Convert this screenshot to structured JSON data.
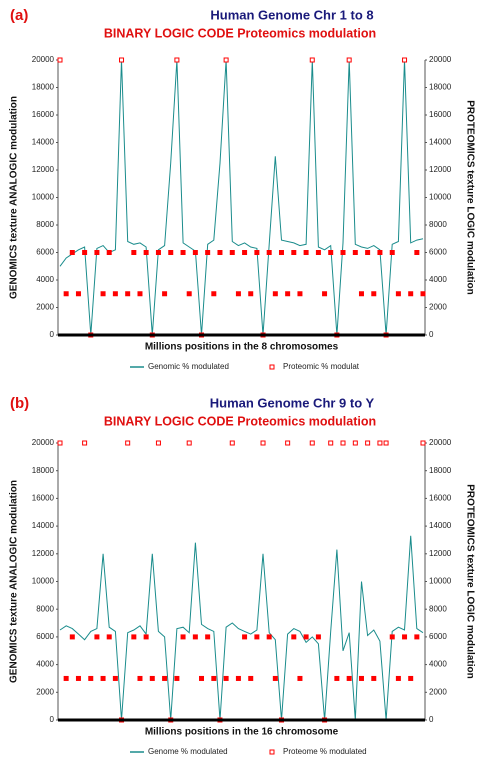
{
  "chart_data": [
    {
      "type": "line",
      "panel_label": "(a)",
      "title": "Human Genome Chr 1 to 8",
      "subtitle": "BINARY LOGIC CODE Proteomics modulation",
      "xlabel": "Millions positions in the 8 chromosomes",
      "ylabel": "GENOMICS texture ANALOGIC modulation",
      "y2label": "PROTEOMICS texture LOGIC modulation",
      "ylim": [
        0,
        20000
      ],
      "yticks": [
        0,
        2000,
        4000,
        6000,
        8000,
        10000,
        12000,
        14000,
        16000,
        18000,
        20000
      ],
      "y2lim": [
        0,
        20000
      ],
      "y2ticks": [
        0,
        2000,
        4000,
        6000,
        8000,
        10000,
        12000,
        14000,
        16000,
        18000,
        20000
      ],
      "grid": false,
      "series": [
        {
          "name": "Genomic % modulated",
          "color": "#1a8c8c",
          "mode": "line",
          "values": [
            5000,
            5600,
            5900,
            6200,
            6400,
            0,
            6300,
            6500,
            6000,
            6200,
            20000,
            6800,
            6600,
            6700,
            6400,
            0,
            6200,
            6500,
            12500,
            20000,
            6700,
            6400,
            6100,
            0,
            6600,
            6900,
            12500,
            20000,
            6800,
            6500,
            6700,
            6400,
            6300,
            0,
            6600,
            13000,
            6900,
            6800,
            6700,
            6500,
            6600,
            20000,
            6400,
            6200,
            6500,
            0,
            6700,
            20000,
            6600,
            6400,
            6300,
            6500,
            6200,
            0,
            6600,
            6800,
            20000,
            6700,
            6900,
            7000
          ]
        },
        {
          "name": "Proteomic % modulat",
          "color": "#ff0000",
          "mode": "markers",
          "axis": "y2",
          "values": [
            20000,
            3000,
            6000,
            3000,
            6000,
            0,
            6000,
            3000,
            6000,
            3000,
            20000,
            3000,
            6000,
            3000,
            6000,
            0,
            6000,
            3000,
            6000,
            20000,
            6000,
            3000,
            6000,
            0,
            6000,
            3000,
            6000,
            20000,
            6000,
            3000,
            6000,
            3000,
            6000,
            0,
            6000,
            3000,
            6000,
            3000,
            6000,
            3000,
            6000,
            20000,
            6000,
            3000,
            6000,
            0,
            6000,
            20000,
            6000,
            3000,
            6000,
            3000,
            6000,
            0,
            6000,
            3000,
            20000,
            3000,
            6000,
            3000
          ]
        }
      ]
    },
    {
      "type": "line",
      "panel_label": "(b)",
      "title": "Human Genome Chr 9 to Y",
      "subtitle": "BINARY LOGIC CODE Proteomics modulation",
      "xlabel": "Millions positions in the 16 chromosome",
      "ylabel": "GENOMICS texture ANALOGIC modulation",
      "y2label": "PROTEOMICS texture LOGIC modulation",
      "ylim": [
        0,
        20000
      ],
      "yticks": [
        0,
        2000,
        4000,
        6000,
        8000,
        10000,
        12000,
        14000,
        16000,
        18000,
        20000
      ],
      "y2lim": [
        0,
        20000
      ],
      "y2ticks": [
        0,
        2000,
        4000,
        6000,
        8000,
        10000,
        12000,
        14000,
        16000,
        18000,
        20000
      ],
      "grid": false,
      "series": [
        {
          "name": "Genome % modulated",
          "color": "#1a8c8c",
          "mode": "line",
          "values": [
            6500,
            6800,
            6600,
            6200,
            5800,
            6400,
            6600,
            12000,
            6700,
            6400,
            0,
            6300,
            6500,
            6800,
            6200,
            12000,
            6400,
            6000,
            0,
            6600,
            6700,
            6300,
            12800,
            6900,
            6600,
            6400,
            0,
            6700,
            7000,
            6600,
            6400,
            6200,
            6500,
            12000,
            6300,
            5800,
            0,
            6200,
            6600,
            6400,
            5600,
            6000,
            5500,
            0,
            6400,
            12300,
            5000,
            6300,
            0,
            10000,
            6100,
            6500,
            5700,
            0,
            6400,
            6700,
            6500,
            13300,
            6600,
            6300
          ]
        },
        {
          "name": "Proteome % modulated",
          "color": "#ff0000",
          "mode": "markers",
          "axis": "y2",
          "values": [
            20000,
            3000,
            6000,
            3000,
            20000,
            3000,
            6000,
            3000,
            6000,
            3000,
            0,
            20000,
            6000,
            3000,
            6000,
            3000,
            20000,
            3000,
            0,
            3000,
            6000,
            20000,
            6000,
            3000,
            6000,
            3000,
            0,
            3000,
            20000,
            3000,
            6000,
            3000,
            6000,
            20000,
            6000,
            3000,
            0,
            20000,
            6000,
            3000,
            6000,
            20000,
            6000,
            0,
            20000,
            3000,
            20000,
            3000,
            20000,
            3000,
            20000,
            3000,
            20000,
            20000,
            6000,
            3000,
            6000,
            3000,
            6000,
            20000
          ]
        }
      ]
    }
  ]
}
